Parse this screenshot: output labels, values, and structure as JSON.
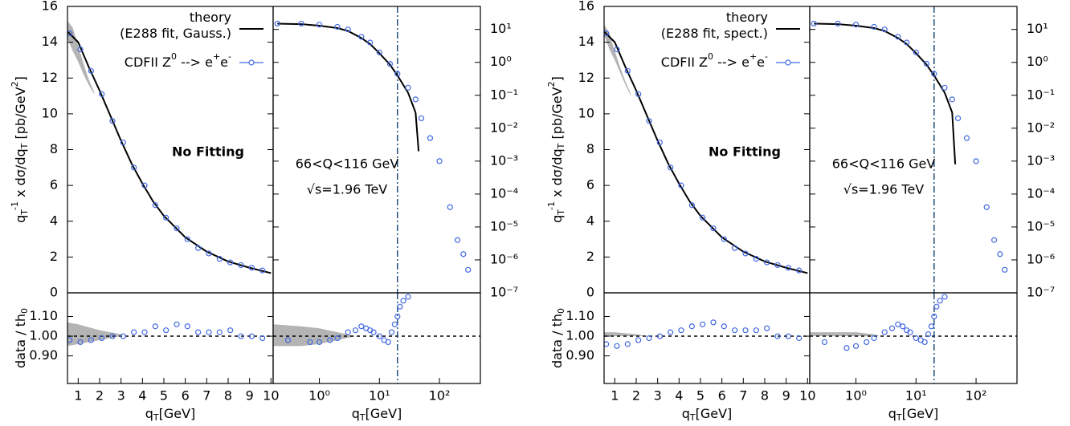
{
  "chart_data": [
    {
      "type": "line",
      "xlim": [
        0.5,
        10.1
      ],
      "ylim": [
        0,
        16
      ],
      "yticks": [
        0,
        2,
        4,
        6,
        8,
        10,
        12,
        14,
        16
      ],
      "yaxis_side": "left",
      "ylabel": [
        {
          "text": "q"
        },
        {
          "text": "T",
          "shift": "sub"
        },
        {
          "text": "-1",
          "shift": "sup"
        },
        {
          "text": " x dσ/dq"
        },
        {
          "text": "T",
          "shift": "sub"
        },
        {
          "text": " [pb/GeV"
        },
        {
          "text": "2",
          "shift": "sup"
        },
        {
          "text": "]"
        }
      ],
      "band": {
        "x": [
          0.5,
          0.75,
          1,
          1.25,
          1.5,
          1.75
        ],
        "upper": [
          15.2,
          14.8,
          13.8,
          12.8,
          11.9,
          11.2
        ],
        "lower": [
          14.2,
          13.5,
          12.9,
          12.2,
          11.6,
          11.1
        ],
        "color": "#b4b4b4"
      },
      "series": [
        {
          "name": [
            {
              "text": "theory"
            },
            {
              "text": "(E288 fit, Gauss.)",
              "shift": "newline"
            }
          ],
          "color": "#000000",
          "style": "line",
          "x": [
            0.5,
            1,
            1.5,
            2,
            2.5,
            3,
            3.5,
            4,
            4.5,
            5,
            6,
            7,
            8,
            9,
            10
          ],
          "values": [
            14.6,
            14.0,
            12.6,
            11.3,
            9.9,
            8.5,
            7.2,
            6.1,
            5.1,
            4.3,
            3.1,
            2.3,
            1.75,
            1.4,
            1.1
          ]
        },
        {
          "name": [
            {
              "text": "CDFII Z"
            },
            {
              "text": "0",
              "shift": "sup"
            },
            {
              "text": " --> e"
            },
            {
              "text": "+",
              "shift": "sup"
            },
            {
              "text": "e"
            },
            {
              "text": "-",
              "shift": "sup"
            }
          ],
          "color": "#4169e1",
          "style": "points",
          "x": [
            0.6,
            1.1,
            1.6,
            2.1,
            2.6,
            3.1,
            3.6,
            4.1,
            4.6,
            5.1,
            5.6,
            6.1,
            6.6,
            7.1,
            7.6,
            8.1,
            8.6,
            9.1,
            9.6
          ],
          "values": [
            14.5,
            13.6,
            12.4,
            11.1,
            9.6,
            8.4,
            7.0,
            6.0,
            4.9,
            4.2,
            3.6,
            3.0,
            2.5,
            2.2,
            1.9,
            1.7,
            1.55,
            1.4,
            1.25
          ]
        }
      ],
      "annotations": [
        {
          "text": "No Fitting",
          "bold": true
        }
      ]
    },
    {
      "type": "line",
      "logx": true,
      "logy": true,
      "xlim": [
        0.17,
        480
      ],
      "ylim": [
        1e-07,
        50
      ],
      "yaxis_side": "right",
      "yticks": [
        {
          "value": 10,
          "label": "10¹"
        },
        {
          "value": 1,
          "label": "10⁰"
        },
        {
          "value": 0.1,
          "label": "10⁻¹"
        },
        {
          "value": 0.01,
          "label": "10⁻²"
        },
        {
          "value": 0.001,
          "label": "10⁻³"
        },
        {
          "value": 0.0001,
          "label": "10⁻⁴"
        },
        {
          "value": 1e-05,
          "label": "10⁻⁵"
        },
        {
          "value": 1e-06,
          "label": "10⁻⁶"
        },
        {
          "value": 1e-07,
          "label": "10⁻⁷"
        }
      ],
      "vline": 20,
      "series": [
        {
          "color": "#000000",
          "style": "line",
          "x": [
            0.2,
            0.5,
            1,
            2,
            3,
            5,
            7,
            10,
            15,
            20,
            30,
            40,
            45
          ],
          "values": [
            15,
            14.5,
            13,
            11,
            9,
            5.5,
            3.6,
            1.9,
            0.85,
            0.4,
            0.12,
            0.03,
            0.002
          ]
        },
        {
          "color": "#4169e1",
          "style": "points",
          "x": [
            0.2,
            0.5,
            1,
            2,
            3,
            5,
            7,
            10,
            15,
            20,
            30,
            40,
            50,
            70,
            100,
            150,
            200,
            250,
            300
          ],
          "values": [
            15,
            15,
            14,
            12,
            10,
            6,
            4,
            2,
            0.9,
            0.45,
            0.17,
            0.075,
            0.02,
            0.005,
            0.001,
            4e-05,
            4e-06,
            1.5e-06,
            5e-07
          ]
        }
      ],
      "annotations": [
        {
          "text": "66<Q<116 GeV"
        },
        {
          "text": "√s=1.96 TeV"
        }
      ]
    },
    {
      "type": "ratio",
      "xlim": [
        0.5,
        10.1
      ],
      "ylim": [
        0.76,
        1.22
      ],
      "yaxis_side": "left",
      "yticks": [
        {
          "value": 0.9,
          "label": "0.90"
        },
        {
          "value": 1,
          "label": "1.00"
        },
        {
          "value": 1.1,
          "label": "1.10"
        }
      ],
      "xticks": [
        1,
        2,
        3,
        4,
        5,
        6,
        7,
        8,
        9,
        10
      ],
      "ylabel": [
        {
          "text": "data / th"
        },
        {
          "text": "0",
          "shift": "sub"
        }
      ],
      "xlabel": [
        {
          "text": "q"
        },
        {
          "text": "T",
          "shift": "sub"
        },
        {
          "text": "[GeV]"
        }
      ],
      "hline": 1,
      "band": {
        "x": [
          0.5,
          1,
          2,
          3
        ],
        "upper": [
          1.07,
          1.06,
          1.03,
          1.01
        ],
        "lower": [
          0.95,
          0.96,
          0.98,
          1.0
        ],
        "color": "#b4b4b4"
      },
      "series": [
        {
          "color": "#4169e1",
          "style": "points",
          "x": [
            0.6,
            1.1,
            1.6,
            2.1,
            2.6,
            3.1,
            3.6,
            4.1,
            4.6,
            5.1,
            5.6,
            6.1,
            6.6,
            7.1,
            7.6,
            8.1,
            8.6,
            9.1,
            9.6
          ],
          "values": [
            0.98,
            0.97,
            0.98,
            0.99,
            1.0,
            1.0,
            1.02,
            1.02,
            1.05,
            1.03,
            1.06,
            1.05,
            1.02,
            1.02,
            1.02,
            1.03,
            1.0,
            1.0,
            0.99
          ]
        }
      ]
    },
    {
      "type": "ratio",
      "logx": true,
      "xlim": [
        0.17,
        480
      ],
      "ylim": [
        0.76,
        1.22
      ],
      "hline": 1,
      "vline": 20,
      "xticks": [
        {
          "value": 1,
          "label": "10⁰"
        },
        {
          "value": 10,
          "label": "10¹"
        },
        {
          "value": 100,
          "label": "10²"
        }
      ],
      "xlabel": [
        {
          "text": "q"
        },
        {
          "text": "T",
          "shift": "sub"
        },
        {
          "text": "[GeV]"
        }
      ],
      "band": {
        "x": [
          0.17,
          0.5,
          1,
          2,
          4
        ],
        "upper": [
          1.06,
          1.05,
          1.04,
          1.02,
          1.0
        ],
        "lower": [
          0.95,
          0.95,
          0.96,
          0.98,
          1.0
        ],
        "color": "#b4b4b4"
      },
      "series": [
        {
          "color": "#4169e1",
          "style": "points",
          "x": [
            0.3,
            0.7,
            1,
            1.5,
            2,
            3,
            4,
            5,
            6,
            7,
            8,
            10,
            12,
            14,
            16,
            18,
            20,
            22,
            25,
            30
          ],
          "values": [
            0.98,
            0.97,
            0.97,
            0.98,
            0.99,
            1.02,
            1.03,
            1.05,
            1.04,
            1.03,
            1.02,
            1.0,
            0.98,
            0.97,
            1.02,
            1.06,
            1.1,
            1.15,
            1.18,
            1.2
          ]
        }
      ]
    },
    {
      "type": "line",
      "xlim": [
        0.5,
        10.1
      ],
      "ylim": [
        0,
        16
      ],
      "yticks": [
        0,
        2,
        4,
        6,
        8,
        10,
        12,
        14,
        16
      ],
      "yaxis_side": "left",
      "ylabel": [
        {
          "text": "q"
        },
        {
          "text": "T",
          "shift": "sub"
        },
        {
          "text": "-1",
          "shift": "sup"
        },
        {
          "text": " x dσ/dq"
        },
        {
          "text": "T",
          "shift": "sub"
        },
        {
          "text": " [pb/GeV"
        },
        {
          "text": "2",
          "shift": "sup"
        },
        {
          "text": "]"
        }
      ],
      "band": {
        "x": [
          0.5,
          0.75,
          1,
          1.25,
          1.5,
          1.75
        ],
        "upper": [
          15.0,
          14.5,
          13.5,
          12.6,
          11.8,
          11.1
        ],
        "lower": [
          14.4,
          13.6,
          13.0,
          12.3,
          11.6,
          11.0
        ],
        "color": "#b4b4b4"
      },
      "series": [
        {
          "name": [
            {
              "text": "theory"
            },
            {
              "text": "(E288 fit, spect.)",
              "shift": "newline"
            }
          ],
          "color": "#000000",
          "style": "line",
          "x": [
            0.5,
            1,
            1.5,
            2,
            2.5,
            3,
            3.5,
            4,
            4.5,
            5,
            6,
            7,
            8,
            9,
            10
          ],
          "values": [
            14.6,
            14.0,
            12.6,
            11.3,
            9.9,
            8.5,
            7.2,
            6.1,
            5.1,
            4.3,
            3.1,
            2.3,
            1.75,
            1.4,
            1.1
          ]
        },
        {
          "name": [
            {
              "text": "CDFII Z"
            },
            {
              "text": "0",
              "shift": "sup"
            },
            {
              "text": " --> e"
            },
            {
              "text": "+",
              "shift": "sup"
            },
            {
              "text": "e"
            },
            {
              "text": "-",
              "shift": "sup"
            }
          ],
          "color": "#4169e1",
          "style": "points",
          "x": [
            0.6,
            1.1,
            1.6,
            2.1,
            2.6,
            3.1,
            3.6,
            4.1,
            4.6,
            5.1,
            5.6,
            6.1,
            6.6,
            7.1,
            7.6,
            8.1,
            8.6,
            9.1,
            9.6
          ],
          "values": [
            14.5,
            13.6,
            12.4,
            11.1,
            9.6,
            8.4,
            7.0,
            6.0,
            4.9,
            4.2,
            3.6,
            3.0,
            2.5,
            2.2,
            1.9,
            1.7,
            1.55,
            1.4,
            1.25
          ]
        }
      ],
      "annotations": [
        {
          "text": "No Fitting",
          "bold": true
        }
      ]
    },
    {
      "type": "line",
      "logx": true,
      "logy": true,
      "xlim": [
        0.17,
        480
      ],
      "ylim": [
        1e-07,
        50
      ],
      "yaxis_side": "right",
      "yticks": [
        {
          "value": 10,
          "label": "10¹"
        },
        {
          "value": 1,
          "label": "10⁰"
        },
        {
          "value": 0.1,
          "label": "10⁻¹"
        },
        {
          "value": 0.01,
          "label": "10⁻²"
        },
        {
          "value": 0.001,
          "label": "10⁻³"
        },
        {
          "value": 0.0001,
          "label": "10⁻⁴"
        },
        {
          "value": 1e-05,
          "label": "10⁻⁵"
        },
        {
          "value": 1e-06,
          "label": "10⁻⁶"
        },
        {
          "value": 1e-07,
          "label": "10⁻⁷"
        }
      ],
      "vline": 20,
      "series": [
        {
          "color": "#000000",
          "style": "line",
          "x": [
            0.2,
            0.5,
            1,
            2,
            3,
            5,
            7,
            10,
            15,
            20,
            30,
            40,
            45
          ],
          "values": [
            15,
            14.5,
            13,
            11,
            9,
            5.5,
            3.6,
            1.9,
            0.85,
            0.4,
            0.12,
            0.03,
            0.0008
          ]
        },
        {
          "color": "#4169e1",
          "style": "points",
          "x": [
            0.2,
            0.5,
            1,
            2,
            3,
            5,
            7,
            10,
            15,
            20,
            30,
            40,
            50,
            70,
            100,
            150,
            200,
            250,
            300
          ],
          "values": [
            15,
            15,
            14,
            12,
            10,
            6,
            4,
            2,
            0.9,
            0.45,
            0.17,
            0.075,
            0.02,
            0.005,
            0.001,
            4e-05,
            4e-06,
            1.5e-06,
            5e-07
          ]
        }
      ],
      "annotations": [
        {
          "text": "66<Q<116 GeV"
        },
        {
          "text": "√s=1.96 TeV"
        }
      ]
    },
    {
      "type": "ratio",
      "xlim": [
        0.5,
        10.1
      ],
      "ylim": [
        0.76,
        1.22
      ],
      "yaxis_side": "left",
      "yticks": [
        {
          "value": 0.9,
          "label": "0.90"
        },
        {
          "value": 1,
          "label": "1.00"
        },
        {
          "value": 1.1,
          "label": "1.10"
        }
      ],
      "xticks": [
        1,
        2,
        3,
        4,
        5,
        6,
        7,
        8,
        9,
        10
      ],
      "ylabel": [
        {
          "text": "data / th"
        },
        {
          "text": "0",
          "shift": "sub"
        }
      ],
      "xlabel": [
        {
          "text": "q"
        },
        {
          "text": "T",
          "shift": "sub"
        },
        {
          "text": "[GeV]"
        }
      ],
      "hline": 1,
      "band": {
        "x": [
          0.5,
          1,
          2,
          2.5
        ],
        "upper": [
          1.02,
          1.02,
          1.01,
          1.0
        ],
        "lower": [
          1.0,
          1.0,
          1.0,
          1.0
        ],
        "color": "#b4b4b4"
      },
      "series": [
        {
          "color": "#4169e1",
          "style": "points",
          "x": [
            0.6,
            1.1,
            1.6,
            2.1,
            2.6,
            3.1,
            3.6,
            4.1,
            4.6,
            5.1,
            5.6,
            6.1,
            6.6,
            7.1,
            7.6,
            8.1,
            8.6,
            9.1,
            9.6
          ],
          "values": [
            0.96,
            0.95,
            0.96,
            0.98,
            0.99,
            1.0,
            1.02,
            1.03,
            1.05,
            1.06,
            1.07,
            1.05,
            1.03,
            1.03,
            1.03,
            1.04,
            1.0,
            1.0,
            0.99
          ]
        }
      ]
    },
    {
      "type": "ratio",
      "logx": true,
      "xlim": [
        0.17,
        480
      ],
      "ylim": [
        0.76,
        1.22
      ],
      "hline": 1,
      "vline": 20,
      "xticks": [
        {
          "value": 1,
          "label": "10⁰"
        },
        {
          "value": 10,
          "label": "10¹"
        },
        {
          "value": 100,
          "label": "10²"
        }
      ],
      "xlabel": [
        {
          "text": "q"
        },
        {
          "text": "T",
          "shift": "sub"
        },
        {
          "text": "[GeV]"
        }
      ],
      "band": {
        "x": [
          0.17,
          0.5,
          1,
          2,
          2.5
        ],
        "upper": [
          1.02,
          1.02,
          1.02,
          1.01,
          1.0
        ],
        "lower": [
          1.0,
          1.0,
          1.0,
          1.0,
          1.0
        ],
        "color": "#b4b4b4"
      },
      "series": [
        {
          "color": "#4169e1",
          "style": "points",
          "x": [
            0.3,
            0.7,
            1,
            1.5,
            2,
            3,
            4,
            5,
            6,
            7,
            8,
            10,
            12,
            14,
            16,
            18,
            20,
            22,
            25,
            30
          ],
          "values": [
            0.97,
            0.94,
            0.95,
            0.97,
            0.99,
            1.02,
            1.04,
            1.06,
            1.05,
            1.03,
            1.02,
            0.99,
            0.98,
            0.97,
            1.01,
            1.05,
            1.1,
            1.15,
            1.18,
            1.2
          ]
        }
      ]
    }
  ]
}
